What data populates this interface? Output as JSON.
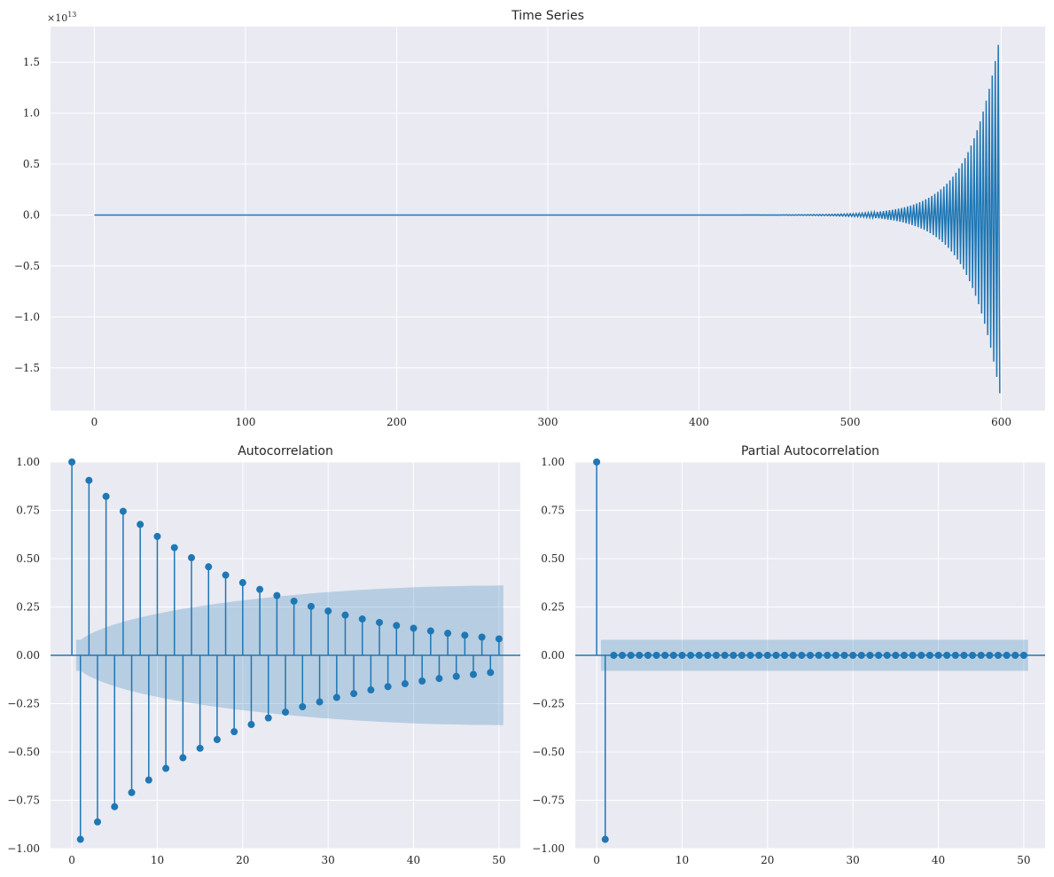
{
  "chart_data": [
    {
      "type": "line",
      "title": "Time Series",
      "xlim": [
        -29,
        629
      ],
      "ylim": [
        -1.92,
        1.85
      ],
      "y_scale_label": "×10",
      "y_scale_exponent": "13",
      "x_ticks": [
        0,
        100,
        200,
        300,
        400,
        500,
        600
      ],
      "x_tick_labels": [
        "0",
        "100",
        "200",
        "300",
        "400",
        "500",
        "600"
      ],
      "y_ticks": [
        -1.5,
        -1.0,
        -0.5,
        0.0,
        0.5,
        1.0,
        1.5
      ],
      "y_tick_labels": [
        "−1.5",
        "−1.0",
        "−0.5",
        "0.0",
        "0.5",
        "1.0",
        "1.5"
      ],
      "series": [
        {
          "n": 600,
          "x_start": 0,
          "x_end": 599,
          "pattern": "alternating sign, exponentially growing amplitude",
          "max_value": 1.67,
          "min_value": -1.75,
          "color": "#1f77b4"
        }
      ],
      "grid": true,
      "background": "#eaeaf2"
    },
    {
      "type": "stem",
      "title": "Autocorrelation",
      "xlim": [
        -2.5,
        52.5
      ],
      "ylim": [
        -1.0,
        1.0
      ],
      "x_ticks": [
        0,
        10,
        20,
        30,
        40,
        50
      ],
      "x_tick_labels": [
        "0",
        "10",
        "20",
        "30",
        "40",
        "50"
      ],
      "y_ticks": [
        -1.0,
        -0.75,
        -0.5,
        -0.25,
        0.0,
        0.25,
        0.5,
        0.75,
        1.0
      ],
      "y_tick_labels": [
        "−1.00",
        "−0.75",
        "−0.50",
        "−0.25",
        "0.00",
        "0.25",
        "0.50",
        "0.75",
        "1.00"
      ],
      "lags": [
        0,
        1,
        2,
        3,
        4,
        5,
        6,
        7,
        8,
        9,
        10,
        11,
        12,
        13,
        14,
        15,
        16,
        17,
        18,
        19,
        20,
        21,
        22,
        23,
        24,
        25,
        26,
        27,
        28,
        29,
        30,
        31,
        32,
        33,
        34,
        35,
        36,
        37,
        38,
        39,
        40,
        41,
        42,
        43,
        44,
        45,
        46,
        47,
        48,
        49,
        50
      ],
      "values": [
        1.0,
        -0.952,
        0.905,
        -0.862,
        0.822,
        -0.783,
        0.745,
        -0.71,
        0.677,
        -0.645,
        0.615,
        -0.585,
        0.557,
        -0.53,
        0.505,
        -0.481,
        0.458,
        -0.436,
        0.415,
        -0.395,
        0.376,
        -0.358,
        0.341,
        -0.324,
        0.309,
        -0.294,
        0.28,
        -0.266,
        0.253,
        -0.241,
        0.229,
        -0.218,
        0.208,
        -0.198,
        0.188,
        -0.179,
        0.17,
        -0.162,
        0.154,
        -0.147,
        0.14,
        -0.133,
        0.126,
        -0.12,
        0.114,
        -0.109,
        0.104,
        -0.099,
        0.094,
        -0.089,
        0.085
      ],
      "confidence_band": [
        0.0,
        0.08,
        0.108,
        0.128,
        0.145,
        0.16,
        0.173,
        0.185,
        0.196,
        0.206,
        0.215,
        0.224,
        0.232,
        0.24,
        0.247,
        0.254,
        0.261,
        0.267,
        0.273,
        0.279,
        0.284,
        0.289,
        0.294,
        0.299,
        0.304,
        0.308,
        0.312,
        0.316,
        0.32,
        0.324,
        0.327,
        0.33,
        0.333,
        0.336,
        0.339,
        0.341,
        0.344,
        0.346,
        0.348,
        0.35,
        0.352,
        0.354,
        0.355,
        0.356,
        0.357,
        0.358,
        0.359,
        0.36,
        0.36,
        0.36,
        0.361
      ],
      "color": "#1f77b4",
      "grid": true
    },
    {
      "type": "stem",
      "title": "Partial Autocorrelation",
      "xlim": [
        -2.5,
        52.5
      ],
      "ylim": [
        -1.0,
        1.0
      ],
      "x_ticks": [
        0,
        10,
        20,
        30,
        40,
        50
      ],
      "x_tick_labels": [
        "0",
        "10",
        "20",
        "30",
        "40",
        "50"
      ],
      "y_ticks": [
        -1.0,
        -0.75,
        -0.5,
        -0.25,
        0.0,
        0.25,
        0.5,
        0.75,
        1.0
      ],
      "y_tick_labels": [
        "−1.00",
        "−0.75",
        "−0.50",
        "−0.25",
        "0.00",
        "0.25",
        "0.50",
        "0.75",
        "1.00"
      ],
      "lags": [
        0,
        1,
        2,
        3,
        4,
        5,
        6,
        7,
        8,
        9,
        10,
        11,
        12,
        13,
        14,
        15,
        16,
        17,
        18,
        19,
        20,
        21,
        22,
        23,
        24,
        25,
        26,
        27,
        28,
        29,
        30,
        31,
        32,
        33,
        34,
        35,
        36,
        37,
        38,
        39,
        40,
        41,
        42,
        43,
        44,
        45,
        46,
        47,
        48,
        49,
        50
      ],
      "values": [
        1.0,
        -0.952,
        0,
        0,
        0,
        0,
        0,
        0,
        0,
        0,
        0,
        0,
        0,
        0,
        0,
        0,
        0,
        0,
        0,
        0,
        0,
        0,
        0,
        0,
        0,
        0,
        0,
        0,
        0,
        0,
        0,
        0,
        0,
        0,
        0,
        0,
        0,
        0,
        0,
        0,
        0,
        0,
        0,
        0,
        0,
        0,
        0,
        0,
        0,
        0,
        0
      ],
      "confidence_band_value": 0.08,
      "color": "#1f77b4",
      "grid": true
    }
  ]
}
